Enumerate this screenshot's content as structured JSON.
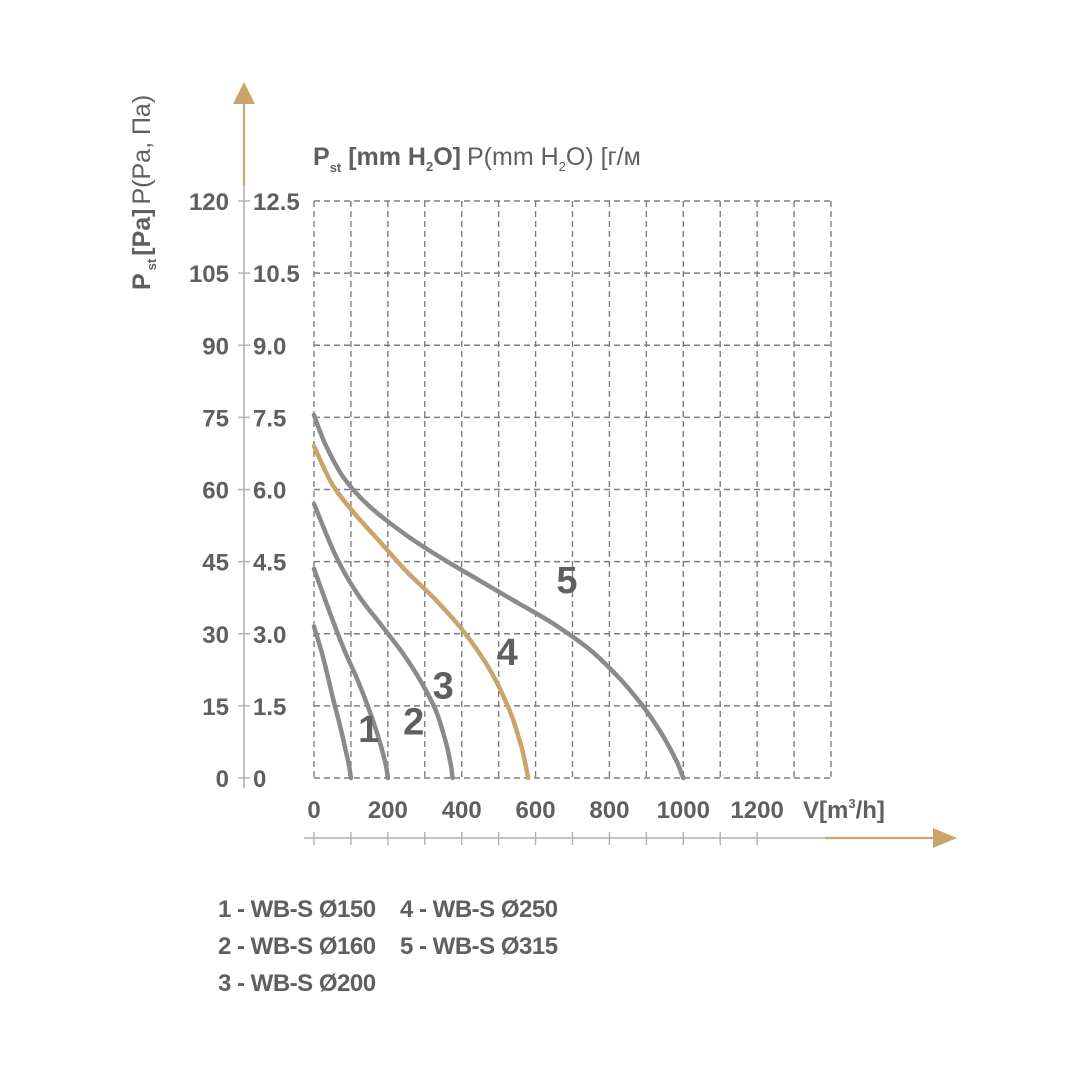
{
  "chart_data": {
    "type": "line",
    "title": "",
    "y_title_left": {
      "main": "P",
      "sub": "st",
      "unit": "[Pa]",
      "extra": "P(Pa, Па)"
    },
    "y_title_right": {
      "main": "P",
      "sub": "st",
      "unit_a": "[mm H",
      "unit_sub": "2",
      "unit_b": "O]",
      "extra_a": "P(mm H",
      "extra_sub": "2",
      "extra_b": "O) [г/м"
    },
    "xlabel": {
      "main": "V[m",
      "sup": "3",
      "end": "/h]"
    },
    "xlim": [
      0,
      1400
    ],
    "ylim": [
      0,
      120
    ],
    "x_ticks": [
      "0",
      "200",
      "400",
      "600",
      "800",
      "1000",
      "1200"
    ],
    "y_ticks_pa": [
      "0",
      "15",
      "30",
      "45",
      "60",
      "75",
      "90",
      "105",
      "120"
    ],
    "y_ticks_mm": [
      "0",
      "1.5",
      "3.0",
      "4.5",
      "6.0",
      "7.5",
      "9.0",
      "10.5",
      "12.5"
    ],
    "grid": true,
    "accent_color": "#c9a56a",
    "curve_color": "#8a8a8a",
    "series": [
      {
        "name": "1",
        "x": [
          0,
          25,
          50,
          70,
          85,
          95,
          100
        ],
        "y": [
          31.5,
          25,
          17,
          11,
          6,
          2.5,
          0
        ]
      },
      {
        "name": "2",
        "x": [
          0,
          40,
          80,
          120,
          155,
          180,
          195,
          200
        ],
        "y": [
          43.5,
          35,
          27,
          20,
          13,
          7,
          2.5,
          0
        ]
      },
      {
        "name": "3",
        "x": [
          0,
          60,
          120,
          180,
          240,
          290,
          330,
          355,
          370,
          375
        ],
        "y": [
          57,
          46,
          38,
          32,
          26,
          20,
          14,
          8,
          3,
          0
        ]
      },
      {
        "name": "4",
        "x": [
          0,
          50,
          110,
          180,
          250,
          330,
          410,
          480,
          530,
          560,
          575,
          580
        ],
        "y": [
          69,
          61,
          55,
          49,
          43,
          37,
          30,
          22,
          14,
          7,
          2,
          0
        ]
      },
      {
        "name": "5",
        "x": [
          0,
          30,
          80,
          150,
          250,
          350,
          450,
          550,
          650,
          750,
          830,
          890,
          935,
          965,
          985,
          995,
          1000
        ],
        "y": [
          75.5,
          69.5,
          62.5,
          56.5,
          50.5,
          45.5,
          41,
          36.5,
          32,
          26.5,
          20.5,
          15,
          10,
          6,
          3,
          1,
          0
        ]
      }
    ],
    "curve_labels": [
      {
        "text": "1",
        "x": 148,
        "y": 7.5
      },
      {
        "text": "2",
        "x": 270,
        "y": 9
      },
      {
        "text": "3",
        "x": 350,
        "y": 16.5
      },
      {
        "text": "4",
        "x": 523,
        "y": 23.5
      },
      {
        "text": "5",
        "x": 685,
        "y": 38.5
      }
    ]
  },
  "legend": [
    "1 - WB-S Ø150",
    "4 - WB-S Ø250",
    "2 - WB-S Ø160",
    "5 - WB-S Ø315",
    "3 - WB-S Ø200"
  ]
}
